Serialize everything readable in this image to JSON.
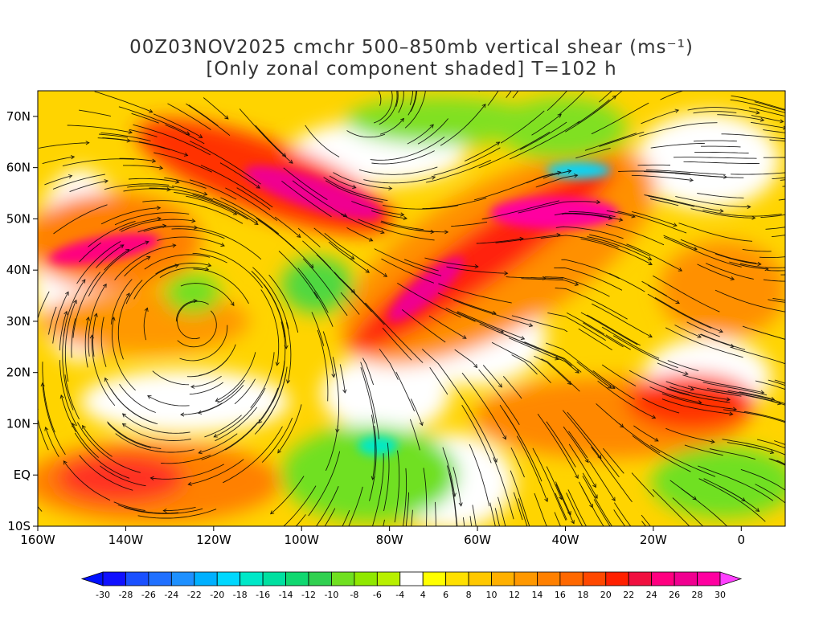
{
  "title": {
    "line1": "00Z03NOV2025 cmchr 500–850mb vertical shear (ms⁻¹)",
    "line2": "[Only zonal component shaded] T=102 h"
  },
  "map": {
    "lon_range": [
      -160,
      10
    ],
    "lat_range": [
      -10,
      75
    ],
    "lon_ticks": [
      {
        "value": -160,
        "label": "160W"
      },
      {
        "value": -140,
        "label": "140W"
      },
      {
        "value": -120,
        "label": "120W"
      },
      {
        "value": -100,
        "label": "100W"
      },
      {
        "value": -80,
        "label": "80W"
      },
      {
        "value": -60,
        "label": "60W"
      },
      {
        "value": -40,
        "label": "40W"
      },
      {
        "value": -20,
        "label": "20W"
      },
      {
        "value": 0,
        "label": "0"
      }
    ],
    "lat_ticks": [
      {
        "value": 70,
        "label": "70N"
      },
      {
        "value": 60,
        "label": "60N"
      },
      {
        "value": 50,
        "label": "50N"
      },
      {
        "value": 40,
        "label": "40N"
      },
      {
        "value": 30,
        "label": "30N"
      },
      {
        "value": 20,
        "label": "20N"
      },
      {
        "value": 10,
        "label": "10N"
      },
      {
        "value": 0,
        "label": "EQ"
      },
      {
        "value": -10,
        "label": "10S"
      }
    ]
  },
  "colorbar": {
    "labels": [
      "-30",
      "-28",
      "-26",
      "-24",
      "-22",
      "-20",
      "-18",
      "-16",
      "-14",
      "-12",
      "-10",
      "-8",
      "-6",
      "-4",
      "4",
      "6",
      "8",
      "10",
      "12",
      "14",
      "16",
      "18",
      "20",
      "22",
      "24",
      "26",
      "28",
      "30"
    ],
    "colors": [
      "#1010ff",
      "#1a50ff",
      "#2070ff",
      "#1e90ff",
      "#00b0ff",
      "#00d8ff",
      "#00e8c8",
      "#00e0a0",
      "#10d870",
      "#30d050",
      "#70e020",
      "#90e800",
      "#b8f000",
      "#ffffff",
      "#ffff00",
      "#ffe000",
      "#ffc800",
      "#ffb000",
      "#ff9800",
      "#ff8000",
      "#ff6800",
      "#ff4800",
      "#ff2000",
      "#f01040",
      "#ff0080",
      "#f00090",
      "#ff00a0"
    ],
    "end_low": "#0010ff",
    "end_high": "#ff40ff"
  }
}
